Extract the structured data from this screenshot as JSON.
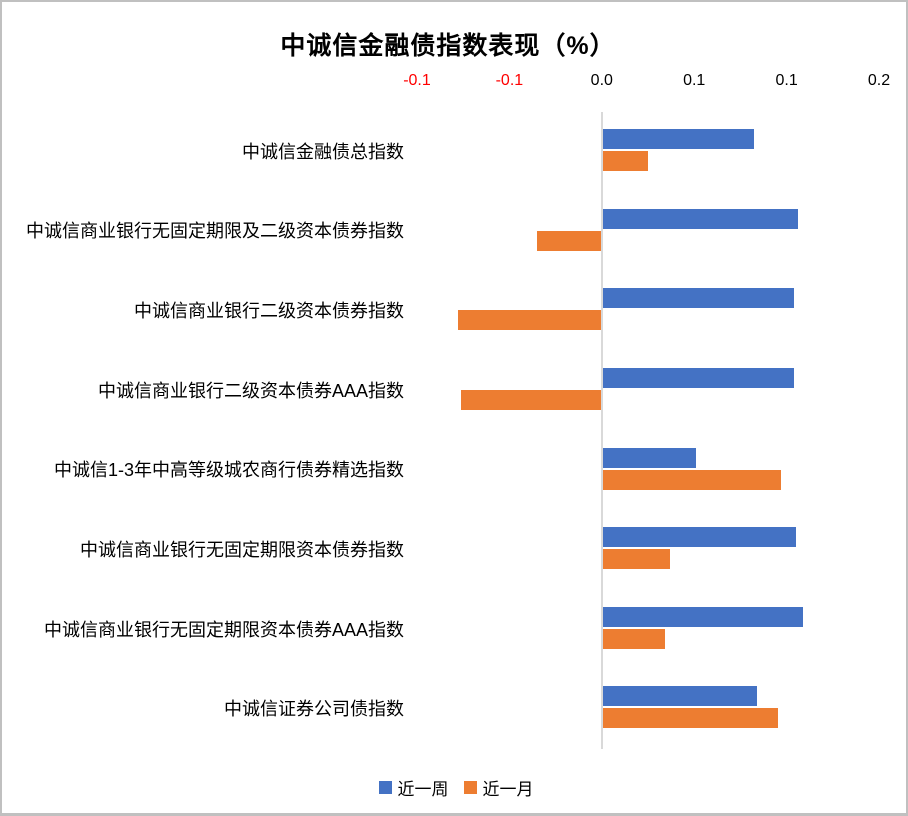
{
  "title": "中诚信金融债指数表现（%）",
  "chart_data": {
    "type": "bar",
    "orientation": "horizontal",
    "title": "中诚信金融债指数表现（%）",
    "categories": [
      "中诚信金融债总指数",
      "中诚信商业银行无固定期限及二级资本债券指数",
      "中诚信商业银行二级资本债券指数",
      "中诚信商业银行二级资本债券AAA指数",
      "中诚信1-3年中高等级城农商行债券精选指数",
      "中诚信商业银行无固定期限资本债券指数",
      "中诚信商业银行无固定期限资本债券AAA指数",
      "中诚信证券公司债指数"
    ],
    "series": [
      {
        "name": "近一周",
        "color": "#4472C4",
        "values": [
          0.082,
          0.106,
          0.104,
          0.104,
          0.051,
          0.105,
          0.109,
          0.084
        ]
      },
      {
        "name": "近一月",
        "color": "#ED7D31",
        "values": [
          0.025,
          -0.035,
          -0.078,
          -0.076,
          0.097,
          0.037,
          0.034,
          0.095
        ]
      }
    ],
    "xlim": [
      -0.1,
      0.15
    ],
    "tick_values": [
      -0.1,
      -0.05,
      0,
      0.05,
      0.1,
      0.15
    ],
    "tick_labels": [
      "-0.1",
      "-0.1",
      "0.0",
      "0.1",
      "0.1",
      "0.2"
    ],
    "tick_color": "#000000",
    "tick_negative_color": "#FF0000",
    "axis_line_color": "#D9D9D9",
    "grid": false,
    "legend_position": "bottom",
    "xlabel": "",
    "ylabel": ""
  }
}
